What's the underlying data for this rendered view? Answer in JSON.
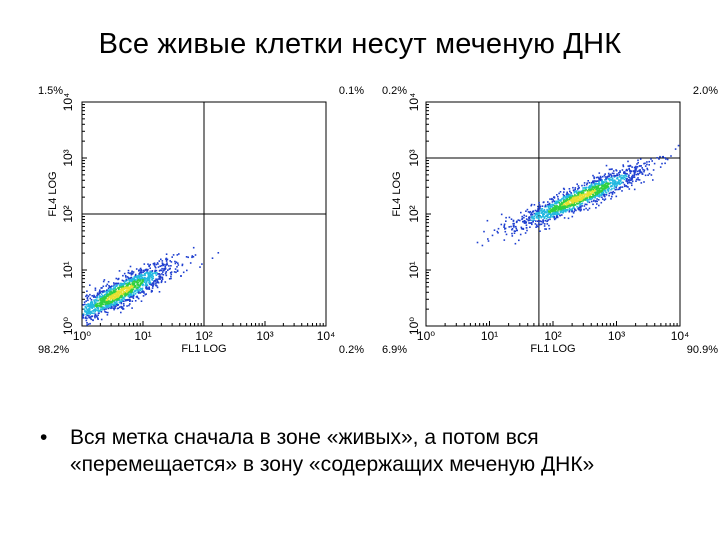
{
  "slide": {
    "title": "Все живые клетки несут меченую ДНК",
    "bullet_marker": "•",
    "bullet_text": "Вся метка сначала в зоне «живых», а потом вся «перемещается» в зону «содержащих меченую ДНК»"
  },
  "colors": {
    "axis": "#000000",
    "dot_blue": "#1f3fd0",
    "dot_cyan": "#22b8e0",
    "dot_green": "#30d040",
    "dot_yellow": "#e8e030"
  },
  "chart_data": [
    {
      "type": "scatter",
      "xlabel": "FL1 LOG",
      "ylabel": "FL4 LOG",
      "scale": "log",
      "xlim": [
        1,
        10000
      ],
      "ylim": [
        1,
        10000
      ],
      "x_ticks": [
        "10⁰",
        "10¹",
        "10²",
        "10³",
        "10⁴"
      ],
      "y_ticks": [
        "10⁰",
        "10¹",
        "10²",
        "10³",
        "10⁴"
      ],
      "gate": {
        "x": 100,
        "y": 100
      },
      "quadrants": {
        "upper_left": "1.5%",
        "upper_right": "0.1%",
        "lower_left": "98.2%",
        "lower_right": "0.2%"
      },
      "cluster": {
        "center": [
          4,
          4
        ],
        "spread_decades": [
          0.45,
          0.25
        ],
        "slope": 0.55
      }
    },
    {
      "type": "scatter",
      "xlabel": "FL1 LOG",
      "ylabel": "FL4 LOG",
      "scale": "log",
      "xlim": [
        1,
        10000
      ],
      "ylim": [
        1,
        10000
      ],
      "x_ticks": [
        "10⁰",
        "10¹",
        "10²",
        "10³",
        "10⁴"
      ],
      "y_ticks": [
        "10⁰",
        "10¹",
        "10²",
        "10³",
        "10⁴"
      ],
      "gate": {
        "x": 60,
        "y": 1000
      },
      "quadrants": {
        "upper_left": "0.2%",
        "upper_right": "2.0%",
        "lower_left": "6.9%",
        "lower_right": "90.9%"
      },
      "cluster": {
        "center": [
          250,
          200
        ],
        "spread_decades": [
          0.55,
          0.22
        ],
        "slope": 0.5
      }
    }
  ]
}
